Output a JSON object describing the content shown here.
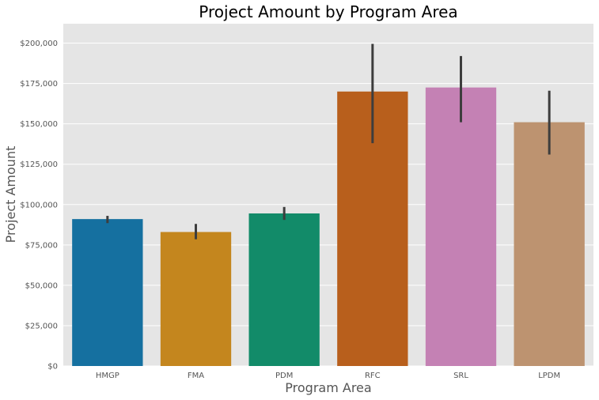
{
  "chart_data": {
    "type": "bar",
    "title": "Project Amount by Program Area",
    "xlabel": "Program Area",
    "ylabel": "Project Amount",
    "categories": [
      "HMGP",
      "FMA",
      "PDM",
      "RFC",
      "SRL",
      "LPDM"
    ],
    "values": [
      91000,
      83000,
      94500,
      170000,
      172500,
      151000
    ],
    "error_low": [
      88500,
      78500,
      90500,
      138000,
      151000,
      131000
    ],
    "error_high": [
      93000,
      88000,
      98500,
      199500,
      192000,
      170500
    ],
    "colors": [
      "#1570a0",
      "#c4861e",
      "#128b69",
      "#b85f1c",
      "#c481b4",
      "#bd9370"
    ],
    "error_color": "#3d3d3d",
    "ylim": [
      0,
      212000
    ],
    "yticks": [
      0,
      25000,
      50000,
      75000,
      100000,
      125000,
      150000,
      175000,
      200000
    ],
    "ytick_labels": [
      "$0",
      "$25,000",
      "$50,000",
      "$75,000",
      "$100,000",
      "$125,000",
      "$150,000",
      "$175,000",
      "$200,000"
    ],
    "grid": true,
    "background": "#e5e5e5"
  }
}
